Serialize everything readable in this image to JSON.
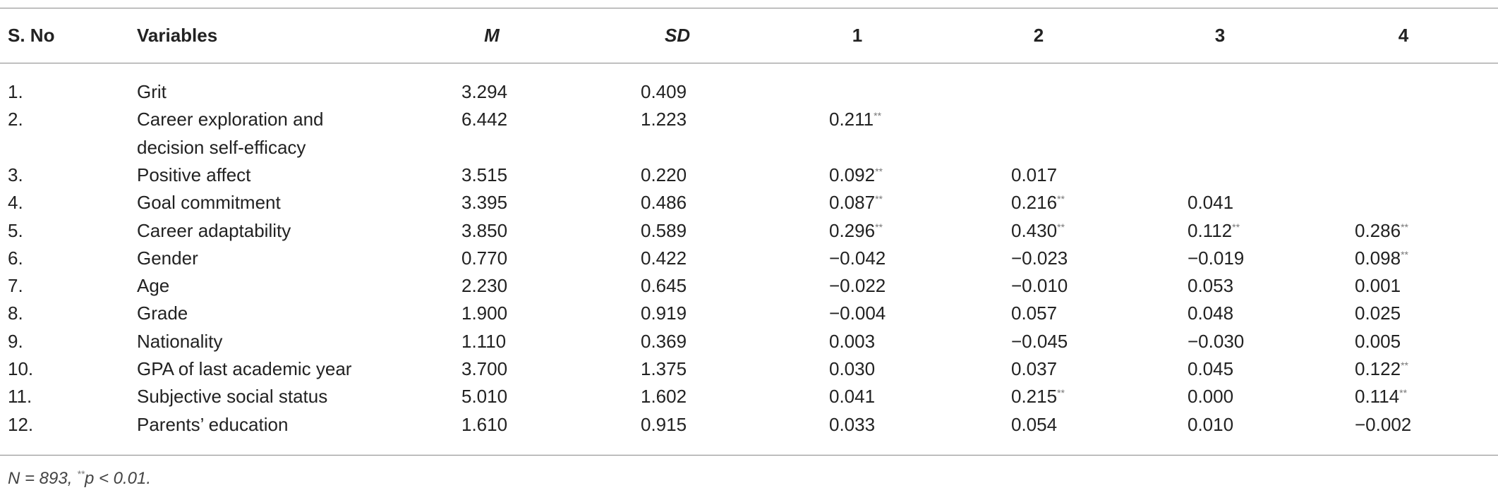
{
  "table": {
    "header": [
      "S. No",
      "Variables",
      "M",
      "SD",
      "1",
      "2",
      "3",
      "4"
    ],
    "rows": [
      {
        "no": "1.",
        "variable": [
          "Grit"
        ],
        "M": "3.294",
        "SD": "0.409",
        "r": [
          null,
          null,
          null,
          null
        ]
      },
      {
        "no": "2.",
        "variable": [
          "Career exploration and",
          "decision self-efficacy"
        ],
        "M": "6.442",
        "SD": "1.223",
        "r": [
          {
            "value": "0.211",
            "sig": "**"
          },
          null,
          null,
          null
        ]
      },
      {
        "no": "3.",
        "variable": [
          "Positive affect"
        ],
        "M": "3.515",
        "SD": "0.220",
        "r": [
          {
            "value": "0.092",
            "sig": "**"
          },
          {
            "value": "0.017"
          },
          null,
          null
        ]
      },
      {
        "no": "4.",
        "variable": [
          "Goal commitment"
        ],
        "M": "3.395",
        "SD": "0.486",
        "r": [
          {
            "value": "0.087",
            "sig": "**"
          },
          {
            "value": "0.216",
            "sig": "**"
          },
          {
            "value": "0.041"
          },
          null
        ]
      },
      {
        "no": "5.",
        "variable": [
          "Career adaptability"
        ],
        "M": "3.850",
        "SD": "0.589",
        "r": [
          {
            "value": "0.296",
            "sig": "**"
          },
          {
            "value": "0.430",
            "sig": "**"
          },
          {
            "value": "0.112",
            "sig": "**"
          },
          {
            "value": "0.286",
            "sig": "**"
          }
        ]
      },
      {
        "no": "6.",
        "variable": [
          "Gender"
        ],
        "M": "0.770",
        "SD": "0.422",
        "r": [
          {
            "value": "−0.042"
          },
          {
            "value": "−0.023"
          },
          {
            "value": "−0.019"
          },
          {
            "value": "0.098",
            "sig": "**"
          }
        ]
      },
      {
        "no": "7.",
        "variable": [
          "Age"
        ],
        "M": "2.230",
        "SD": "0.645",
        "r": [
          {
            "value": "−0.022"
          },
          {
            "value": "−0.010"
          },
          {
            "value": "0.053"
          },
          {
            "value": "0.001"
          }
        ]
      },
      {
        "no": "8.",
        "variable": [
          "Grade"
        ],
        "M": "1.900",
        "SD": "0.919",
        "r": [
          {
            "value": "−0.004"
          },
          {
            "value": "0.057"
          },
          {
            "value": "0.048"
          },
          {
            "value": "0.025"
          }
        ]
      },
      {
        "no": "9.",
        "variable": [
          "Nationality"
        ],
        "M": "1.110",
        "SD": "0.369",
        "r": [
          {
            "value": "0.003"
          },
          {
            "value": "−0.045"
          },
          {
            "value": "−0.030"
          },
          {
            "value": "0.005"
          }
        ]
      },
      {
        "no": "10.",
        "variable": [
          "GPA of last academic year"
        ],
        "M": "3.700",
        "SD": "1.375",
        "r": [
          {
            "value": "0.030"
          },
          {
            "value": "0.037"
          },
          {
            "value": "0.045"
          },
          {
            "value": "0.122",
            "sig": "**"
          }
        ]
      },
      {
        "no": "11.",
        "variable": [
          "Subjective social status"
        ],
        "M": "5.010",
        "SD": "1.602",
        "r": [
          {
            "value": "0.041"
          },
          {
            "value": "0.215",
            "sig": "**"
          },
          {
            "value": "0.000"
          },
          {
            "value": "0.114",
            "sig": "**"
          }
        ]
      },
      {
        "no": "12.",
        "variable": [
          "Parents’ education"
        ],
        "M": "1.610",
        "SD": "0.915",
        "r": [
          {
            "value": "0.033"
          },
          {
            "value": "0.054"
          },
          {
            "value": "0.010"
          },
          {
            "value": "−0.002"
          }
        ]
      }
    ],
    "note": [
      "N = 893, ",
      "**",
      "p < 0.01."
    ]
  }
}
